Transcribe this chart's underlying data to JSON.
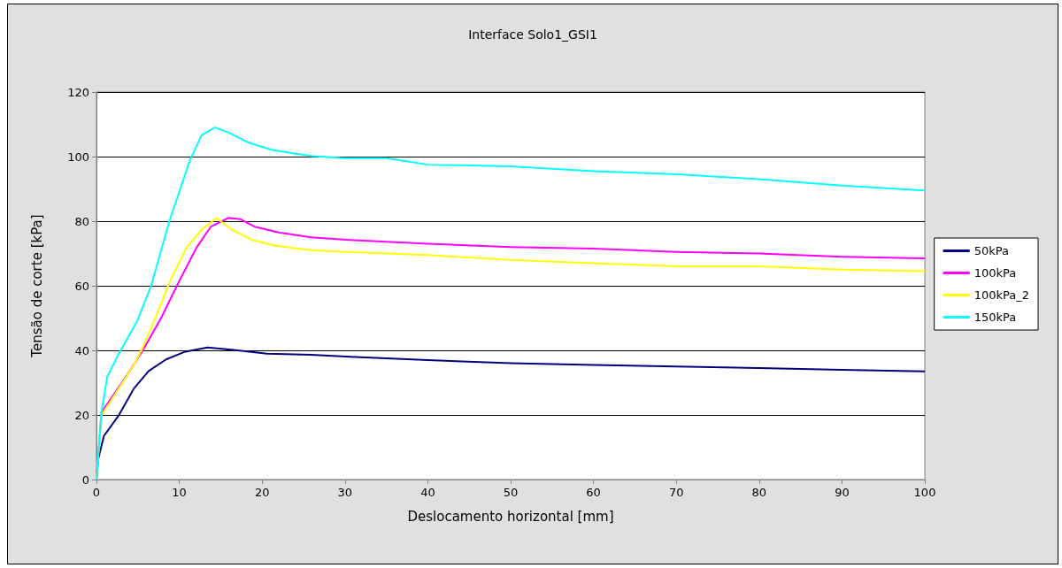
{
  "chart_data": {
    "type": "line",
    "title": "Interface Solo1_GSI1",
    "xlabel": "Deslocamento horizontal [mm]",
    "ylabel": "Tensão de corte [kPa]",
    "xlim": [
      0,
      100
    ],
    "xticks": [
      0,
      10,
      20,
      30,
      40,
      50,
      60,
      70,
      80,
      90,
      100
    ],
    "ylim": [
      0,
      120
    ],
    "yticks": [
      0,
      20,
      40,
      60,
      80,
      100,
      120
    ],
    "grid": "y",
    "legend": "right",
    "marker": "none",
    "line_style": "solid",
    "series": [
      {
        "name": "50kPa",
        "color": "#000080",
        "x": [
          0,
          0.2,
          0.9,
          2.7,
          4.5,
          6.3,
          8.4,
          10.6,
          13.4,
          17,
          20.6,
          25.9,
          30.6,
          40,
          50,
          60,
          70,
          80,
          90,
          100
        ],
        "values": [
          0,
          6.2,
          13.5,
          19.9,
          28.1,
          33.6,
          37.2,
          39.5,
          40.9,
          40,
          39,
          38.6,
          38,
          37,
          36,
          35.5,
          35,
          34.5,
          34,
          33.5
        ]
      },
      {
        "name": "100kPa",
        "color": "#ff00ff",
        "x": [
          0,
          0.6,
          1.6,
          3.8,
          5.6,
          7.8,
          9.9,
          12.1,
          13.8,
          15.9,
          17.4,
          19.1,
          22,
          25.9,
          30.6,
          40,
          50,
          60,
          70,
          80,
          90,
          100
        ],
        "values": [
          0,
          20.8,
          24.5,
          32.7,
          40,
          50,
          61,
          71.9,
          78.3,
          81,
          80.6,
          78.3,
          76.5,
          75,
          74.2,
          73,
          72,
          71.5,
          70.5,
          70,
          69,
          68.5
        ]
      },
      {
        "name": "100kPa_2",
        "color": "#ffff00",
        "x": [
          0,
          0.6,
          2,
          4.5,
          5.6,
          7.4,
          8.8,
          10.9,
          12.7,
          14.5,
          16.3,
          18.8,
          21.6,
          25.9,
          30.2,
          40,
          50,
          60,
          70,
          80,
          90,
          100
        ],
        "values": [
          0,
          19.9,
          25.4,
          35.4,
          40.9,
          51.8,
          61,
          71.9,
          77.4,
          81,
          77.4,
          74.2,
          72.4,
          71,
          70.5,
          69.5,
          68,
          67,
          66,
          66,
          65,
          64.5
        ]
      },
      {
        "name": "150kPa",
        "color": "#00ffff",
        "x": [
          0,
          0.6,
          1.3,
          2.7,
          4.9,
          6.6,
          8.8,
          11.3,
          12.7,
          14.3,
          15.9,
          18.4,
          21.3,
          25.9,
          29.9,
          35,
          40,
          50,
          60,
          70,
          80,
          90,
          100
        ],
        "values": [
          0,
          20.8,
          31.8,
          39,
          49,
          60,
          80,
          99,
          106.6,
          109,
          107.5,
          104.3,
          102,
          100.2,
          99.5,
          99.5,
          97.5,
          97,
          95.5,
          94.5,
          93,
          91,
          89.5
        ]
      }
    ]
  }
}
